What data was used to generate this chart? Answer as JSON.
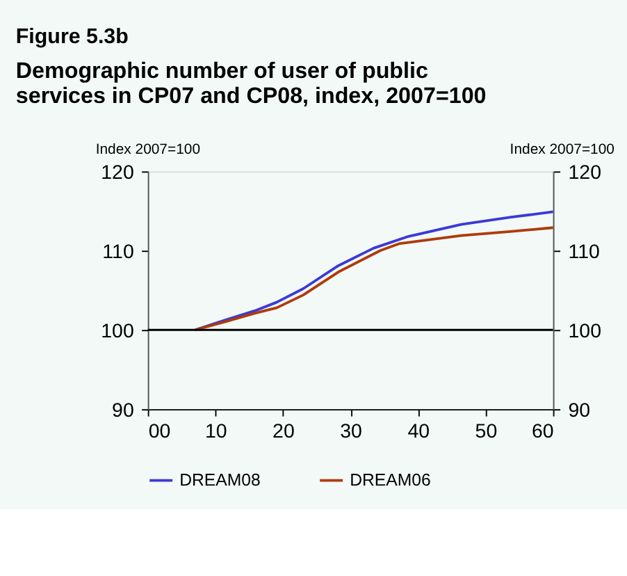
{
  "chart_data": {
    "type": "line",
    "title": "Figure 5.3b",
    "subtitle": "Demographic number of user of public services in CP07 and CP08, index, 2007=100",
    "ylabel": "Index 2007=100",
    "y2label": "Index 2007=100",
    "x": [
      7,
      11.3,
      15.8,
      19.1,
      23.0,
      28.2,
      33.4,
      38.6,
      46.4,
      53.6,
      60
    ],
    "series": [
      {
        "name": "DREAM08",
        "color": "#3a3ad8",
        "values": [
          100,
          101.2,
          102.4,
          103.5,
          105.2,
          108.1,
          110.3,
          111.8,
          113.3,
          114.2,
          114.9
        ]
      },
      {
        "name": "DREAM06",
        "color": "#b03a0a",
        "x": [
          7,
          11.3,
          15.8,
          19.1,
          23.0,
          28.2,
          34.4,
          37.3,
          46.4,
          53.6,
          60
        ],
        "values": [
          100,
          101.0,
          102.1,
          102.8,
          104.4,
          107.3,
          110.0,
          110.9,
          111.9,
          112.4,
          112.9
        ]
      }
    ],
    "xlim": [
      0,
      60
    ],
    "xticks": [
      {
        "value": 0,
        "label": "00"
      },
      10,
      20,
      30,
      40,
      50,
      60
    ],
    "ylim": [
      90,
      120
    ],
    "yticks": [
      90,
      100,
      110,
      120
    ],
    "y2lim": [
      90,
      120
    ],
    "y2ticks": [
      90,
      100,
      110,
      120
    ],
    "ref_lines": [
      {
        "axis": "y2",
        "value": 100,
        "color": "#000000"
      }
    ],
    "grid": false,
    "legend": "bottom",
    "line_style": "solid",
    "marker": "none"
  }
}
